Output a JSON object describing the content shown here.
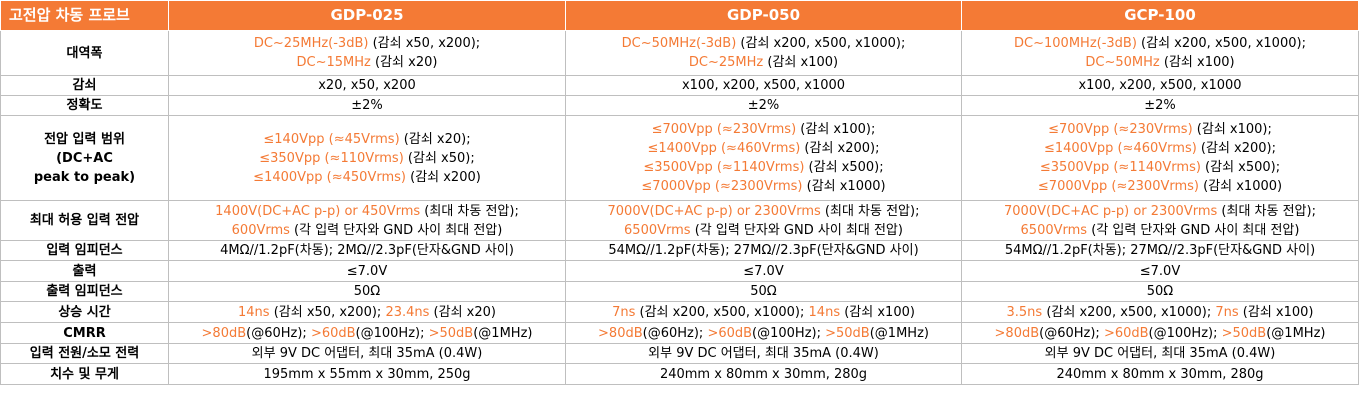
{
  "colors": {
    "header_bg": "#f47a35",
    "accent_text": "#f47a35",
    "border": "#bfbfbf"
  },
  "header": {
    "title": "고전압 차동 프로브",
    "models": [
      "GDP-025",
      "GDP-050",
      "GCP-100"
    ]
  },
  "rows": [
    {
      "label_lines": [
        "대역폭"
      ],
      "cells": [
        [
          [
            [
              "DC~25MHz(-3dB)",
              true
            ],
            [
              " (감쇠 x50, x200);",
              false
            ]
          ],
          [
            [
              "DC~15MHz",
              true
            ],
            [
              " (감쇠 x20)",
              false
            ]
          ]
        ],
        [
          [
            [
              "DC~50MHz(-3dB)",
              true
            ],
            [
              " (감쇠 x200, x500, x1000);",
              false
            ]
          ],
          [
            [
              "DC~25MHz",
              true
            ],
            [
              " (감쇠 x100)",
              false
            ]
          ]
        ],
        [
          [
            [
              "DC~100MHz(-3dB)",
              true
            ],
            [
              "  (감쇠 x200, x500, x1000);",
              false
            ]
          ],
          [
            [
              "DC~50MHz",
              true
            ],
            [
              "  (감쇠 x100)",
              false
            ]
          ]
        ]
      ]
    },
    {
      "label_lines": [
        "감쇠"
      ],
      "cells": [
        [
          [
            [
              "x20, x50, x200",
              false
            ]
          ]
        ],
        [
          [
            [
              "x100, x200, x500, x1000",
              false
            ]
          ]
        ],
        [
          [
            [
              "x100, x200, x500, x1000",
              false
            ]
          ]
        ]
      ]
    },
    {
      "label_lines": [
        "정확도"
      ],
      "cells": [
        [
          [
            [
              "±2%",
              false
            ]
          ]
        ],
        [
          [
            [
              "±2%",
              false
            ]
          ]
        ],
        [
          [
            [
              "±2%",
              false
            ]
          ]
        ]
      ]
    },
    {
      "label_lines": [
        "전압 입력 범위",
        "(DC+AC",
        "peak to peak)"
      ],
      "cells": [
        [
          [
            [
              "≤140Vpp (≈45Vrms)",
              true
            ],
            [
              " (감쇠 x20);",
              false
            ]
          ],
          [
            [
              "≤350Vpp (≈110Vrms)",
              true
            ],
            [
              " (감쇠 x50);",
              false
            ]
          ],
          [
            [
              "≤1400Vpp (≈450Vrms)",
              true
            ],
            [
              " (감쇠 x200)",
              false
            ]
          ]
        ],
        [
          [
            [
              "≤700Vpp (≈230Vrms)",
              true
            ],
            [
              " (감쇠 x100);",
              false
            ]
          ],
          [
            [
              "≤1400Vpp (≈460Vrms)",
              true
            ],
            [
              " (감쇠 x200);",
              false
            ]
          ],
          [
            [
              "≤3500Vpp (≈1140Vrms)",
              true
            ],
            [
              " (감쇠 x500);",
              false
            ]
          ],
          [
            [
              "≤7000Vpp (≈2300Vrms)",
              true
            ],
            [
              " (감쇠 x1000)",
              false
            ]
          ]
        ],
        [
          [
            [
              "≤700Vpp (≈230Vrms)",
              true
            ],
            [
              " (감쇠 x100);",
              false
            ]
          ],
          [
            [
              "≤1400Vpp (≈460Vrms)",
              true
            ],
            [
              " (감쇠 x200);",
              false
            ]
          ],
          [
            [
              "≤3500Vpp (≈1140Vrms)",
              true
            ],
            [
              " (감쇠 x500);",
              false
            ]
          ],
          [
            [
              "≤7000Vpp (≈2300Vrms)",
              true
            ],
            [
              " (감쇠 x1000)",
              false
            ]
          ]
        ]
      ]
    },
    {
      "label_lines": [
        "최대 허용 입력 전압"
      ],
      "cells": [
        [
          [
            [
              "1400V(DC+AC p-p) or 450Vrms",
              true
            ],
            [
              " (최대 차동 전압);",
              false
            ]
          ],
          [
            [
              "600Vrms",
              true
            ],
            [
              " (각 입력 단자와 GND 사이 최대 전압)",
              false
            ]
          ]
        ],
        [
          [
            [
              "7000V(DC+AC p-p) or 2300Vrms",
              true
            ],
            [
              " (최대 차동 전압);",
              false
            ]
          ],
          [
            [
              "6500Vrms",
              true
            ],
            [
              " (각 입력 단자와 GND 사이 최대 전압)",
              false
            ]
          ]
        ],
        [
          [
            [
              "7000V(DC+AC p-p) or 2300Vrms",
              true
            ],
            [
              " (최대 차동 전압);",
              false
            ]
          ],
          [
            [
              "6500Vrms",
              true
            ],
            [
              " (각 입력 단자와 GND 사이 최대 전압)",
              false
            ]
          ]
        ]
      ]
    },
    {
      "label_lines": [
        "입력 임피던스"
      ],
      "cells": [
        [
          [
            [
              "4MΩ//1.2pF(차동); 2MΩ//2.3pF(단자&GND 사이)",
              false
            ]
          ]
        ],
        [
          [
            [
              "54MΩ//1.2pF(차동); 27MΩ//2.3pF(단자&GND 사이)",
              false
            ]
          ]
        ],
        [
          [
            [
              "54MΩ//1.2pF(차동); 27MΩ//2.3pF(단자&GND 사이)",
              false
            ]
          ]
        ]
      ]
    },
    {
      "label_lines": [
        "출력"
      ],
      "cells": [
        [
          [
            [
              "≤7.0V",
              false
            ]
          ]
        ],
        [
          [
            [
              "≤7.0V",
              false
            ]
          ]
        ],
        [
          [
            [
              "≤7.0V",
              false
            ]
          ]
        ]
      ]
    },
    {
      "label_lines": [
        "출력 임피던스"
      ],
      "cells": [
        [
          [
            [
              "50Ω",
              false
            ]
          ]
        ],
        [
          [
            [
              "50Ω",
              false
            ]
          ]
        ],
        [
          [
            [
              "50Ω",
              false
            ]
          ]
        ]
      ]
    },
    {
      "label_lines": [
        "상승 시간"
      ],
      "cells": [
        [
          [
            [
              "14ns",
              true
            ],
            [
              " (감쇠 x50, x200); ",
              false
            ],
            [
              "23.4ns",
              true
            ],
            [
              " (감쇠 x20)",
              false
            ]
          ]
        ],
        [
          [
            [
              "7ns",
              true
            ],
            [
              " (감쇠 x200, x500, x1000); ",
              false
            ],
            [
              "14ns",
              true
            ],
            [
              " (감쇠 x100)",
              false
            ]
          ]
        ],
        [
          [
            [
              "3.5ns",
              true
            ],
            [
              " (감쇠 x200, x500, x1000); ",
              false
            ],
            [
              "7ns",
              true
            ],
            [
              " (감쇠 x100)",
              false
            ]
          ]
        ]
      ]
    },
    {
      "label_lines": [
        "CMRR"
      ],
      "cells": [
        [
          [
            [
              ">80dB",
              true
            ],
            [
              "(@60Hz); ",
              false
            ],
            [
              ">60dB",
              true
            ],
            [
              "(@100Hz); ",
              false
            ],
            [
              ">50dB",
              true
            ],
            [
              "(@1MHz)",
              false
            ]
          ]
        ],
        [
          [
            [
              ">80dB",
              true
            ],
            [
              "(@60Hz); ",
              false
            ],
            [
              ">60dB",
              true
            ],
            [
              "(@100Hz); ",
              false
            ],
            [
              ">50dB",
              true
            ],
            [
              "(@1MHz)",
              false
            ]
          ]
        ],
        [
          [
            [
              ">80dB",
              true
            ],
            [
              "(@60Hz); ",
              false
            ],
            [
              ">60dB",
              true
            ],
            [
              "(@100Hz); ",
              false
            ],
            [
              ">50dB",
              true
            ],
            [
              "(@1MHz)",
              false
            ]
          ]
        ]
      ]
    },
    {
      "label_lines": [
        "입력 전원/소모 전력"
      ],
      "cells": [
        [
          [
            [
              "외부 9V DC 어댑터, 최대 35mA (0.4W)",
              false
            ]
          ]
        ],
        [
          [
            [
              "외부 9V DC 어댑터, 최대 35mA (0.4W)",
              false
            ]
          ]
        ],
        [
          [
            [
              "외부 9V DC 어댑터, 최대 35mA (0.4W)",
              false
            ]
          ]
        ]
      ]
    },
    {
      "label_lines": [
        "치수 및 무게"
      ],
      "cells": [
        [
          [
            [
              "195mm x 55mm x 30mm, 250g",
              false
            ]
          ]
        ],
        [
          [
            [
              "240mm x 80mm x 30mm, 280g",
              false
            ]
          ]
        ],
        [
          [
            [
              "240mm x 80mm x 30mm, 280g",
              false
            ]
          ]
        ]
      ]
    }
  ]
}
